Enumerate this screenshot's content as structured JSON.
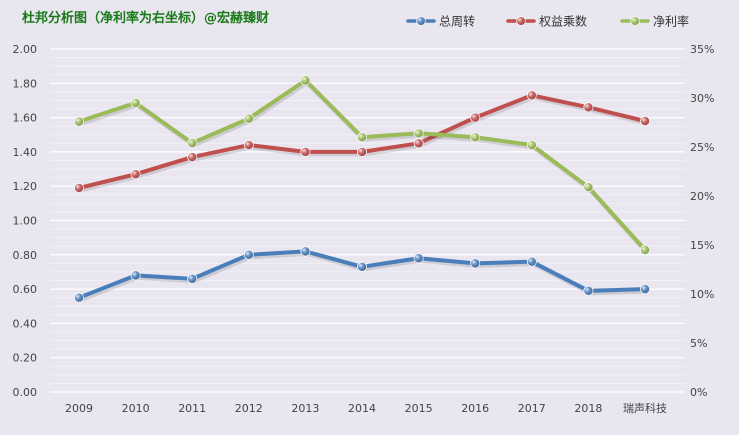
{
  "chart_data": {
    "type": "line",
    "title": "杜邦分析图（净利率为右坐标）@宏赫臻财",
    "categories": [
      "2009",
      "2010",
      "2011",
      "2012",
      "2013",
      "2014",
      "2015",
      "2016",
      "2017",
      "2018",
      "瑞声科技"
    ],
    "y_left": {
      "ylim": [
        0,
        2.0
      ],
      "ticks": [
        "0.00",
        "0.20",
        "0.40",
        "0.60",
        "0.80",
        "1.00",
        "1.20",
        "1.40",
        "1.60",
        "1.80",
        "2.00"
      ]
    },
    "y_right": {
      "ylim": [
        0,
        35
      ],
      "ticks": [
        "0%",
        "5%",
        "10%",
        "15%",
        "20%",
        "25%",
        "30%",
        "35%"
      ]
    },
    "grid": true,
    "legend_position": "top-right",
    "series": [
      {
        "name": "总周转",
        "axis": "left",
        "color": "#4a7ebb",
        "values": [
          0.55,
          0.68,
          0.66,
          0.8,
          0.82,
          0.73,
          0.78,
          0.75,
          0.76,
          0.59,
          0.6
        ]
      },
      {
        "name": "权益乘数",
        "axis": "left",
        "color": "#c0504d",
        "values": [
          1.19,
          1.27,
          1.37,
          1.44,
          1.4,
          1.4,
          1.45,
          1.6,
          1.73,
          1.66,
          1.58
        ]
      },
      {
        "name": "净利率",
        "axis": "right",
        "color": "#9bbb59",
        "values": [
          27.6,
          29.5,
          25.4,
          27.9,
          31.8,
          26.0,
          26.4,
          26.0,
          25.2,
          20.9,
          14.5
        ]
      }
    ]
  }
}
